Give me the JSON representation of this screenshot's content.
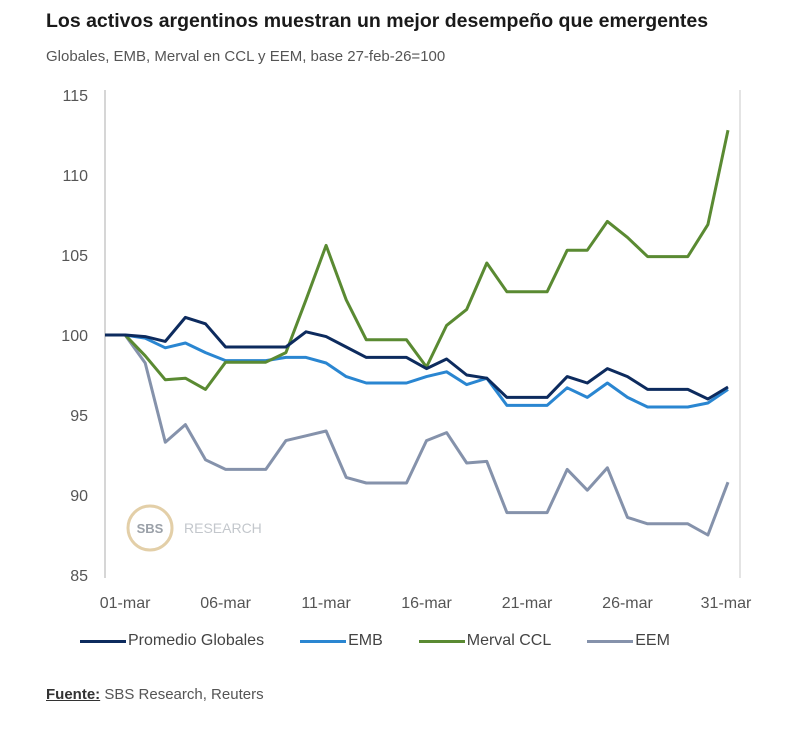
{
  "chart_data": {
    "type": "line",
    "title": "Los activos argentinos muestran un mejor desempeño que emergentes",
    "subtitle": "Globales, EMB, Merval en CCL y EEM, base 27-feb-26=100",
    "xlabel": "",
    "ylabel": "",
    "ylim": [
      85,
      115
    ],
    "yticks": [
      "115",
      "110",
      "105",
      "100",
      "95",
      "90",
      "85"
    ],
    "ytick_values": [
      115,
      110,
      105,
      100,
      95,
      90,
      85
    ],
    "xlim": [
      0,
      31
    ],
    "x": [
      0,
      1,
      2,
      3,
      4,
      5,
      6,
      7,
      8,
      9,
      10,
      11,
      12,
      13,
      14,
      15,
      16,
      17,
      18,
      19,
      20,
      21,
      22,
      23,
      24,
      25,
      26,
      27,
      28,
      29,
      30,
      31
    ],
    "xticks": [
      "01-mar",
      "06-mar",
      "11-mar",
      "16-mar",
      "21-mar",
      "26-mar",
      "31-mar"
    ],
    "xtick_values": [
      1,
      6,
      11,
      16,
      21,
      26,
      31
    ],
    "grid": false,
    "legend_position": "bottom",
    "series": [
      {
        "name": "Promedio Globales",
        "color": "#0d2b5e",
        "values": [
          100,
          100,
          99.9,
          99.6,
          101.1,
          100.7,
          99.25,
          99.25,
          99.25,
          99.25,
          100.2,
          99.9,
          99.25,
          98.6,
          98.6,
          98.6,
          97.9,
          98.5,
          97.5,
          97.3,
          96.1,
          96.1,
          96.1,
          97.4,
          97.0,
          97.9,
          97.4,
          96.6,
          96.6,
          96.6,
          96.0,
          96.75
        ]
      },
      {
        "name": "EMB",
        "color": "#2a86d1",
        "values": [
          100,
          100,
          99.8,
          99.2,
          99.5,
          98.9,
          98.4,
          98.4,
          98.4,
          98.6,
          98.6,
          98.25,
          97.4,
          97.0,
          97.0,
          97.0,
          97.4,
          97.7,
          96.9,
          97.3,
          95.6,
          95.6,
          95.6,
          96.7,
          96.1,
          97.0,
          96.1,
          95.5,
          95.5,
          95.5,
          95.75,
          96.6
        ]
      },
      {
        "name": "Merval CCL",
        "color": "#5a8a32",
        "values": [
          100,
          100,
          98.7,
          97.2,
          97.3,
          96.6,
          98.3,
          98.3,
          98.3,
          98.9,
          102.2,
          105.6,
          102.2,
          99.7,
          99.7,
          99.7,
          98.0,
          100.6,
          101.6,
          104.5,
          102.7,
          102.7,
          102.7,
          105.3,
          105.3,
          107.1,
          106.1,
          104.9,
          104.9,
          104.9,
          106.9,
          112.8
        ]
      },
      {
        "name": "EEM",
        "color": "#8592ab",
        "values": [
          100,
          100,
          98.25,
          93.3,
          94.4,
          92.2,
          91.6,
          91.6,
          91.6,
          93.4,
          93.7,
          94.0,
          91.1,
          90.75,
          90.75,
          90.75,
          93.4,
          93.9,
          92.0,
          92.1,
          88.9,
          88.9,
          88.9,
          91.6,
          90.3,
          91.7,
          88.6,
          88.2,
          88.2,
          88.2,
          87.5,
          90.8
        ]
      }
    ],
    "watermark": "SBS RESEARCH"
  },
  "source_label": "Fuente:",
  "source_text": " SBS Research, Reuters"
}
